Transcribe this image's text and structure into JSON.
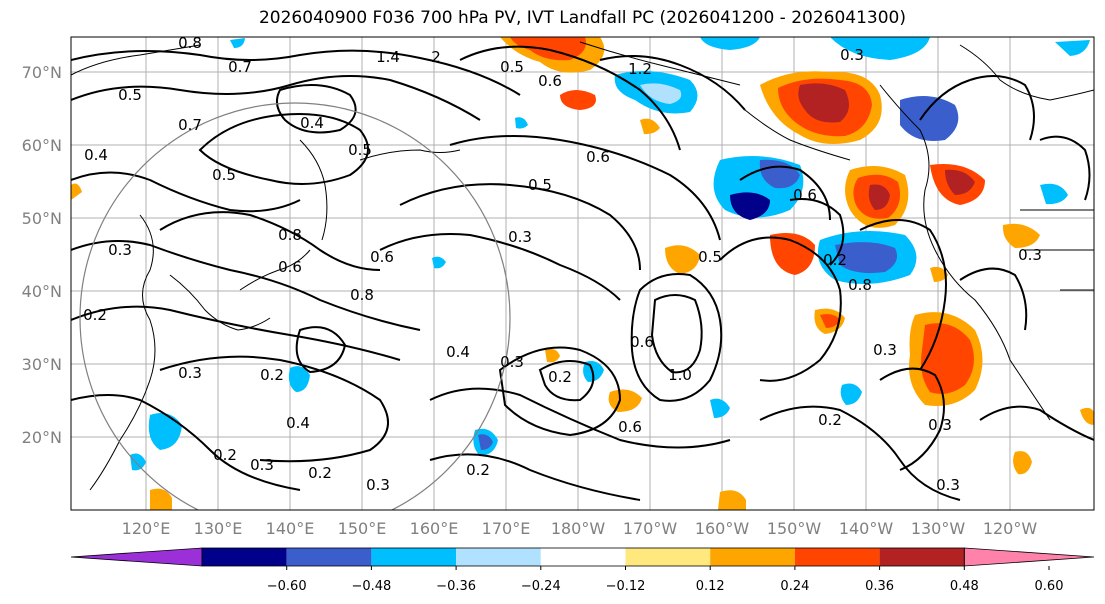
{
  "title": "2026040900 F036 700 hPa PV, IVT Landfall PC (2026041200 - 2026041300)",
  "lat_labels": [
    "70°N",
    "60°N",
    "50°N",
    "40°N",
    "30°N",
    "20°N"
  ],
  "lon_labels": [
    "120°E",
    "130°E",
    "140°E",
    "150°E",
    "160°E",
    "170°E",
    "180°W",
    "170°W",
    "160°W",
    "150°W",
    "140°W",
    "130°W",
    "120°W"
  ],
  "contour_labels": [
    "0.8",
    "0.7",
    "1.4",
    "2",
    "0.5",
    "1.2",
    "0.3",
    "0.5",
    "0.4",
    "0.6",
    "0.7",
    "0.5",
    "0.4",
    "0.5",
    "0.8",
    "0.6",
    "0.8",
    "0.3",
    "0.3",
    "0.2",
    "0.6",
    "0.5",
    "0.3",
    "0.2",
    "0.4",
    "0.3",
    "0.6",
    "1.0",
    "0.2",
    "0.3",
    "0.6",
    "0.2",
    "0.2",
    "0.2",
    "0.3",
    "0.4",
    "0.2",
    "0.3",
    "0.3",
    "0.3",
    "0.6",
    "0.5",
    "0.4",
    "0.8",
    "0.6",
    "0.2",
    "0.3"
  ],
  "colorbar": {
    "ticks": [
      "−0.60",
      "−0.48",
      "−0.36",
      "−0.24",
      "−0.12",
      "0.12",
      "0.24",
      "0.36",
      "0.48",
      "0.60"
    ],
    "colors": [
      "#9b30d9",
      "#00008b",
      "#3a5fcd",
      "#00bfff",
      "#b0e2ff",
      "#ffffff",
      "#ffe97f",
      "#ffa500",
      "#ff4500",
      "#b22222",
      "#ff82ab"
    ]
  },
  "colors": {
    "strong_neg": "#00008b",
    "neg": "#3a5fcd",
    "light_neg": "#00bfff",
    "pale_neg": "#b0e2ff",
    "pale_pos": "#ffe97f",
    "pos": "#ffa500",
    "strong_pos": "#ff4500",
    "very_strong_pos": "#b22222",
    "grid": "#b0b0b0"
  }
}
